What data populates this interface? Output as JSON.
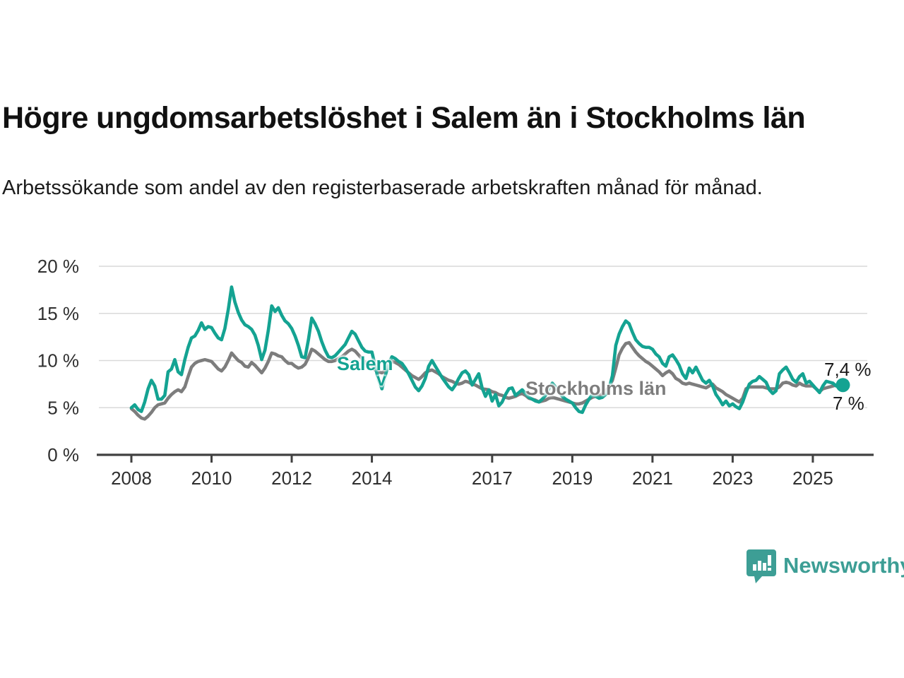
{
  "header": {
    "title": "Högre ungdomsarbetslöshet i Salem än i Stockholms län",
    "subtitle": "Arbetssökande som andel av den registerbaserade arbetskraften månad för månad."
  },
  "annotations": {
    "salem_label": "Salem",
    "salem_caret": "v",
    "stockholm_label": "Stockholms län",
    "salem_end_value": "7,4 %",
    "stockholm_end_value": "7 %"
  },
  "branding": {
    "name": "Newsworthy",
    "color": "#3d9e95",
    "logo": "bar-chart-speech-bubble-icon"
  },
  "chart_data": {
    "type": "line",
    "title": "Högre ungdomsarbetslöshet i Salem än i Stockholms län",
    "subtitle": "Arbetssökande som andel av den registerbaserade arbetskraften månad för månad.",
    "x_unit": "month",
    "x_start_year": 2008,
    "x_start_month": 1,
    "x_end_year": 2025,
    "x_end_month": 10,
    "x_tick_years": [
      2008,
      2010,
      2012,
      2014,
      2017,
      2019,
      2021,
      2023,
      2025
    ],
    "y_axis": {
      "tick_labels": [
        "0 %",
        "5 %",
        "10 %",
        "15 %",
        "20 %"
      ],
      "tick_values": [
        0,
        5,
        10,
        15,
        20
      ],
      "range": [
        0,
        20
      ],
      "grid": true
    },
    "legend_position": "inline-labels",
    "series": [
      {
        "name": "Stockholms län",
        "color": "#7d7d7d",
        "end_label": "7 %",
        "values": [
          4.9,
          4.6,
          4.2,
          3.9,
          3.8,
          4.1,
          4.5,
          5.0,
          5.3,
          5.4,
          5.5,
          6.0,
          6.4,
          6.7,
          6.9,
          6.7,
          7.2,
          8.3,
          9.3,
          9.7,
          9.9,
          10.0,
          10.1,
          10.0,
          9.9,
          9.5,
          9.1,
          8.9,
          9.3,
          10.0,
          10.8,
          10.4,
          10.0,
          9.8,
          9.4,
          9.3,
          9.8,
          9.5,
          9.1,
          8.7,
          9.2,
          9.9,
          10.8,
          10.7,
          10.5,
          10.4,
          10.0,
          9.7,
          9.7,
          9.4,
          9.2,
          9.3,
          9.6,
          10.3,
          11.2,
          11.0,
          10.7,
          10.4,
          10.1,
          9.9,
          9.9,
          10.0,
          10.2,
          10.4,
          10.7,
          11.0,
          11.2,
          11.0,
          10.6,
          10.2,
          9.8,
          9.5,
          9.3,
          9.0,
          8.8,
          8.7,
          8.9,
          9.4,
          9.9,
          9.8,
          9.6,
          9.3,
          9.0,
          8.7,
          8.4,
          8.2,
          8.0,
          8.3,
          8.7,
          8.9,
          9.0,
          8.8,
          8.6,
          8.3,
          8.1,
          7.9,
          7.8,
          7.6,
          7.5,
          7.6,
          7.8,
          7.7,
          7.5,
          7.4,
          7.2,
          7.0,
          6.95,
          6.9,
          6.7,
          6.6,
          6.4,
          6.3,
          6.1,
          6.0,
          6.1,
          6.2,
          6.4,
          6.5,
          6.3,
          6.0,
          5.9,
          5.8,
          5.6,
          5.7,
          5.8,
          6.0,
          6.1,
          6.0,
          5.9,
          5.8,
          5.7,
          5.6,
          5.5,
          5.4,
          5.4,
          5.5,
          5.7,
          5.9,
          6.1,
          6.2,
          6.3,
          6.5,
          6.8,
          7.2,
          7.9,
          9.2,
          10.6,
          11.3,
          11.8,
          11.9,
          11.4,
          10.9,
          10.5,
          10.2,
          9.9,
          9.7,
          9.4,
          9.1,
          8.8,
          8.4,
          8.7,
          8.9,
          8.6,
          8.1,
          7.9,
          7.6,
          7.5,
          7.6,
          7.5,
          7.4,
          7.3,
          7.2,
          7.1,
          7.3,
          7.5,
          7.1,
          6.9,
          6.7,
          6.4,
          6.2,
          6.0,
          5.8,
          5.6,
          6.0,
          7.0,
          7.2,
          7.2,
          7.2,
          7.2,
          7.2,
          7.1,
          7.0,
          7.0,
          7.0,
          7.2,
          7.6,
          7.7,
          7.6,
          7.4,
          7.3,
          7.6,
          7.4,
          7.3,
          7.3,
          7.3,
          7.0,
          6.7,
          7.0,
          7.1,
          7.2,
          7.3,
          7.4,
          7.4,
          7.0
        ]
      },
      {
        "name": "Salem",
        "color": "#14a392",
        "end_label": "7,4 %",
        "end_dot": true,
        "values": [
          5.0,
          5.3,
          4.8,
          4.6,
          5.6,
          7.0,
          7.9,
          7.3,
          5.9,
          5.9,
          6.3,
          8.8,
          9.1,
          10.1,
          8.8,
          8.5,
          10.1,
          11.4,
          12.4,
          12.6,
          13.2,
          14.0,
          13.3,
          13.6,
          13.5,
          12.9,
          12.4,
          12.2,
          13.4,
          15.4,
          17.8,
          16.2,
          15.1,
          14.3,
          13.8,
          13.6,
          13.3,
          12.7,
          11.6,
          10.1,
          11.1,
          13.2,
          15.8,
          15.2,
          15.6,
          14.8,
          14.2,
          13.9,
          13.4,
          12.6,
          11.6,
          10.4,
          10.3,
          12.2,
          14.5,
          13.9,
          13.1,
          12.0,
          11.1,
          10.4,
          10.3,
          10.5,
          10.9,
          11.3,
          11.7,
          12.4,
          13.1,
          12.8,
          12.1,
          11.4,
          11.0,
          10.9,
          10.9,
          9.4,
          7.9,
          7.0,
          8.4,
          9.6,
          10.4,
          10.2,
          9.9,
          9.7,
          9.2,
          8.6,
          7.9,
          7.2,
          6.8,
          7.3,
          8.1,
          9.4,
          10.0,
          9.4,
          8.8,
          8.2,
          7.7,
          7.2,
          6.9,
          7.4,
          8.1,
          8.7,
          8.9,
          8.5,
          7.4,
          8.0,
          8.6,
          7.1,
          6.2,
          6.9,
          5.7,
          6.4,
          5.2,
          5.6,
          6.4,
          7.0,
          7.1,
          6.3,
          6.6,
          6.9,
          6.5,
          6.1,
          5.9,
          5.7,
          5.6,
          5.9,
          6.3,
          7.0,
          7.6,
          7.2,
          6.7,
          6.2,
          5.9,
          5.7,
          5.5,
          5.0,
          4.6,
          4.5,
          5.3,
          5.9,
          6.4,
          6.2,
          6.0,
          6.1,
          6.4,
          7.0,
          8.4,
          11.6,
          12.8,
          13.6,
          14.2,
          13.9,
          13.0,
          12.2,
          11.8,
          11.5,
          11.4,
          11.4,
          11.2,
          10.7,
          10.4,
          9.7,
          9.4,
          10.4,
          10.6,
          10.1,
          9.5,
          8.6,
          8.1,
          9.2,
          8.7,
          9.3,
          8.6,
          7.9,
          7.6,
          7.9,
          7.3,
          6.4,
          5.9,
          5.3,
          5.7,
          5.2,
          5.4,
          5.1,
          4.9,
          5.6,
          6.6,
          7.5,
          7.8,
          7.9,
          8.3,
          8.0,
          7.7,
          6.9,
          6.5,
          6.8,
          8.6,
          9.0,
          9.3,
          8.7,
          8.0,
          7.7,
          8.3,
          8.6,
          7.6,
          7.8,
          7.4,
          7.0,
          6.6,
          7.3,
          7.8,
          7.7,
          7.6,
          7.3,
          7.2,
          7.4
        ]
      }
    ],
    "axis_color": "#414141",
    "grid_color": "#d9d9d9",
    "tick_label_color": "#2f2f2f"
  }
}
